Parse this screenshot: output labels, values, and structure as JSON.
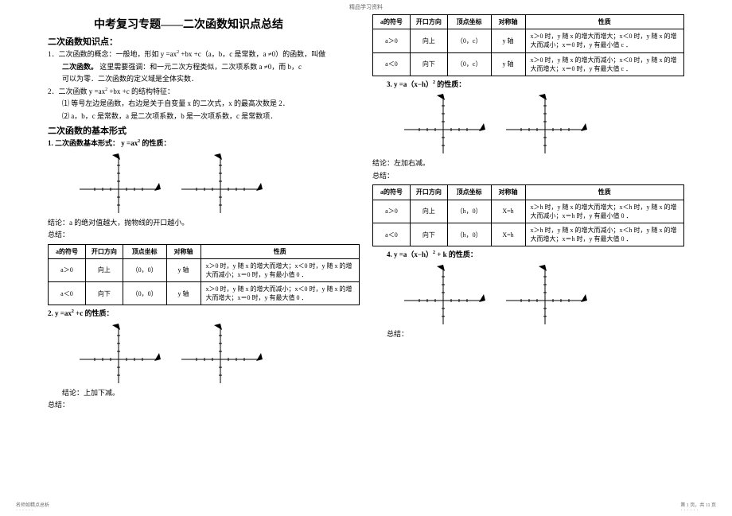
{
  "header_text": "精品学习资料",
  "main_title": "中考复习专题——二次函数知识点总结",
  "left": {
    "h1": "二次函数知识点：",
    "p1a": "1．二次函数的概念：一般地，形如 y =ax",
    "p1b": " +bx +c（a，b，c 是常数，a ≠0）的函数，叫做",
    "p1c": "二次函数。",
    "p1d": "这里需要强调：和一元二次方程类似，二次项系数 a ≠0，而 b，c",
    "p1e": "可以为零．二次函数的定义域是全体实数．",
    "p2a": "2．二次函数 y =ax",
    "p2b": " +bx +c 的结构特征：",
    "p2c": "⑴ 等号左边是函数，右边是关于自变量 x 的二次式，x 的最高次数是 2．",
    "p2d": "⑵ a，b，c 是常数，a 是二次项系数，b 是一次项系数，c 是常数项．",
    "h2": "二次函数的基本形式",
    "form1": "1. 二次函数基本形式： y =ax",
    "form1b": " 的性质：",
    "concl1": "结论：a 的绝对值越大，抛物线的开口越小。",
    "summary": "总结：",
    "form2a": "2. y =ax",
    "form2b": " +c 的性质：",
    "concl2": "结论：上加下减。",
    "table1": {
      "headers": [
        "a的符号",
        "开口方向",
        "顶点坐标",
        "对称轴",
        "性质"
      ],
      "rows": [
        [
          "a＞0",
          "向上",
          "（0，0）",
          "y 轴",
          "x＞0 时，y 随 x 的增大而增大；x＜0 时，y 随 x 的增大而减小；x＝0 时，y 有最小值 0 ．"
        ],
        [
          "a＜0",
          "向下",
          "（0，0）",
          "y 轴",
          "x＞0 时，y 随 x 的增大而减小；x＜0 时，y 随 x 的增大而增大；x＝0 时，y 有最大值 0 ．"
        ]
      ]
    }
  },
  "right": {
    "item3a": "3. y =a（x−h）",
    "item3b": " 的性质：",
    "concl3": "结论：左加右减。",
    "summary": "总结：",
    "item4a": "4. y =a（x−h）",
    "item4b": " + k 的性质：",
    "summary4": "总结：",
    "table2": {
      "headers": [
        "a的符号",
        "开口方向",
        "顶点坐标",
        "对称轴",
        "性质"
      ],
      "rows": [
        [
          "a＞0",
          "向上",
          "（0，c）",
          "y 轴",
          "x＞0 时，y 随 x 的增大而增大；x＜0 时，y 随 x 的增大而减小；x＝0 时，y 有最小值 c ．"
        ],
        [
          "a＜0",
          "向下",
          "（0，c）",
          "y 轴",
          "x＞0 时，y 随 x 的增大而减小；x＜0 时，y 随 x 的增大而增大；x＝0 时，y 有最大值 c ．"
        ]
      ]
    },
    "table3": {
      "headers": [
        "a的符号",
        "开口方向",
        "顶点坐标",
        "对称轴",
        "性质"
      ],
      "rows": [
        [
          "a＞0",
          "向上",
          "（h，0）",
          "X=h",
          "x＞h 时，y 随 x 的增大而增大；x＜h 时，y 随 x 的增大而减小；x＝h 时，y 有最小值 0 ．"
        ],
        [
          "a＜0",
          "向下",
          "（h，0）",
          "X=h",
          "x＞h 时，y 随 x 的增大而减小；x＜h 时，y 随 x 的增大而增大；x＝h 时，y 有最大值 0 ．"
        ]
      ]
    }
  },
  "footer_left": "名师如精点总析",
  "footer_right_a": "第 1 页，共 11 页",
  "graph": {
    "width": 110,
    "height": 80,
    "axis_color": "#000",
    "tick_color": "#000",
    "background": "#fff",
    "stroke_width": 1,
    "x_ticks": [
      -30,
      -20,
      -10,
      10,
      20,
      30
    ],
    "y_ticks": [
      -20,
      -10,
      10,
      20,
      30
    ]
  },
  "col_widths": {
    "c1": "12%",
    "c2": "12%",
    "c3": "14%",
    "c4": "11%",
    "c5": "51%"
  }
}
